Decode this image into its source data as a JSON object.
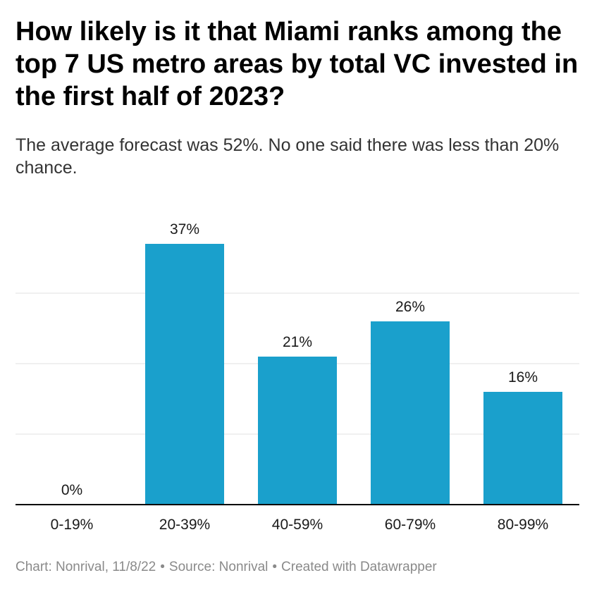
{
  "title": "How likely is it that Miami ranks among the top 7 US metro areas by total VC invested in the first half of 2023?",
  "subtitle": "The average forecast was 52%. No one said there was less than 20% chance.",
  "footer": {
    "chart_credit": "Chart: Nonrival, 11/8/22",
    "source": "Source: Nonrival",
    "created_with": "Created with Datawrapper",
    "separator": "•"
  },
  "chart_data": {
    "type": "bar",
    "categories": [
      "0-19%",
      "20-39%",
      "40-59%",
      "60-79%",
      "80-99%"
    ],
    "values": [
      0,
      37,
      21,
      26,
      16
    ],
    "data_labels": [
      "0%",
      "37%",
      "21%",
      "26%",
      "16%"
    ],
    "ylim": [
      0,
      40
    ],
    "gridlines": [
      10,
      20,
      30
    ],
    "grid": true,
    "bar_color": "#1aa0cc"
  }
}
